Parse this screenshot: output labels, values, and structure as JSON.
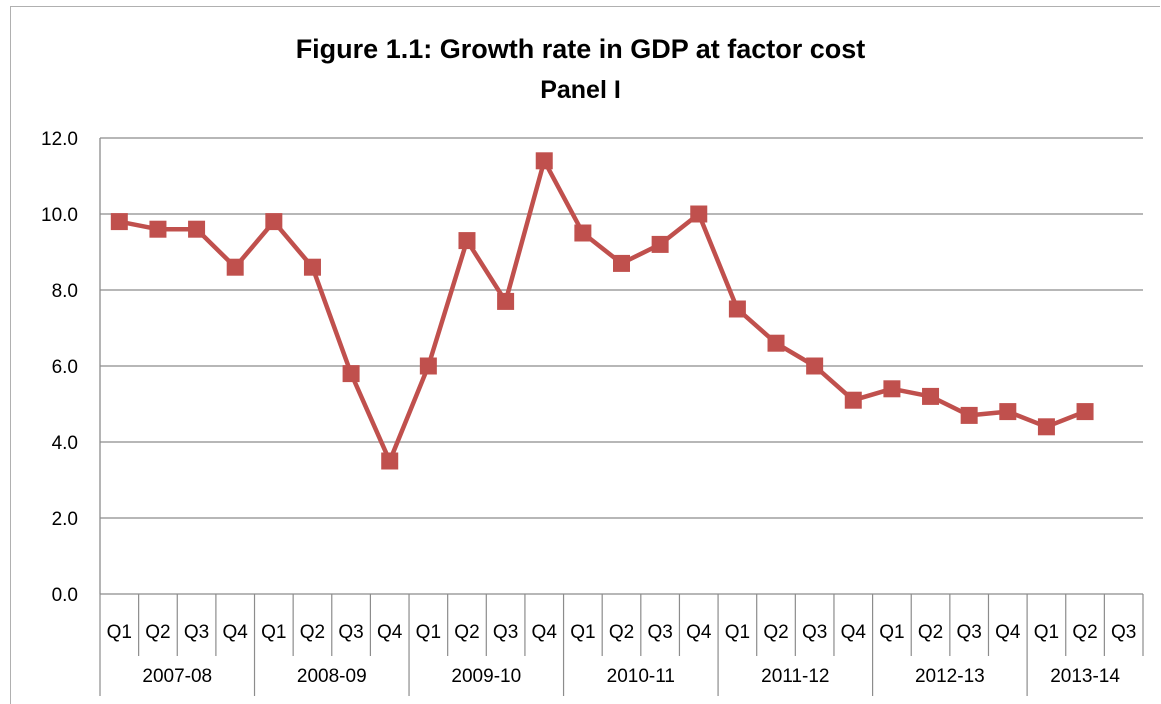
{
  "chart_data": {
    "type": "line",
    "title": "Figure 1.1:  Growth rate in GDP at factor cost",
    "subtitle": "Panel I",
    "xlabel": "",
    "ylabel": "",
    "ylim": [
      0,
      12
    ],
    "yticks": [
      "0.0",
      "2.0",
      "4.0",
      "6.0",
      "8.0",
      "10.0",
      "12.0"
    ],
    "grid": true,
    "legend": "none",
    "quarter_labels": [
      "Q1",
      "Q2",
      "Q3",
      "Q4",
      "Q1",
      "Q2",
      "Q3",
      "Q4",
      "Q1",
      "Q2",
      "Q3",
      "Q4",
      "Q1",
      "Q2",
      "Q3",
      "Q4",
      "Q1",
      "Q2",
      "Q3",
      "Q4",
      "Q1",
      "Q2",
      "Q3",
      "Q4",
      "Q1",
      "Q2",
      "Q3"
    ],
    "years": [
      {
        "label": "2007-08",
        "quarters": 4
      },
      {
        "label": "2008-09",
        "quarters": 4
      },
      {
        "label": "2009-10",
        "quarters": 4
      },
      {
        "label": "2010-11",
        "quarters": 4
      },
      {
        "label": "2011-12",
        "quarters": 4
      },
      {
        "label": "2012-13",
        "quarters": 4
      },
      {
        "label": "2013-14",
        "quarters": 3
      }
    ],
    "series": [
      {
        "color": "#c0504d",
        "values": [
          9.8,
          9.6,
          9.6,
          8.6,
          9.8,
          8.6,
          5.8,
          3.5,
          6.0,
          9.3,
          7.7,
          11.4,
          9.5,
          8.7,
          9.2,
          10.0,
          7.5,
          6.6,
          6.0,
          5.1,
          5.4,
          5.2,
          4.7,
          4.8,
          4.4,
          4.8,
          null
        ]
      }
    ]
  }
}
